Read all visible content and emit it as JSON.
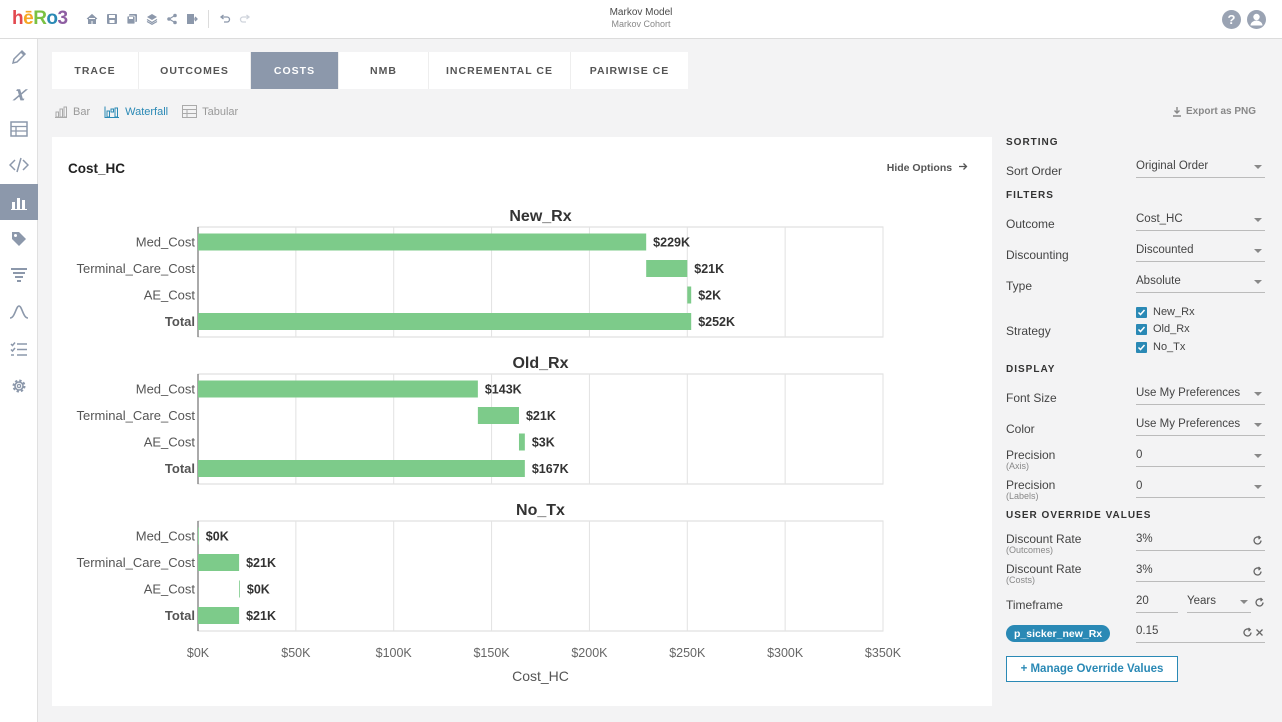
{
  "app": {
    "logo": [
      {
        "ch": "h",
        "color": "#e2484f"
      },
      {
        "ch": "ē",
        "color": "#f5a623"
      },
      {
        "ch": "R",
        "color": "#7ac142"
      },
      {
        "ch": "o",
        "color": "#2a89b5"
      },
      {
        "ch": "3",
        "color": "#8e5ea2"
      }
    ],
    "title": "Markov Model",
    "subtitle": "Markov Cohort"
  },
  "tabs": [
    {
      "label": "TRACE",
      "active": false
    },
    {
      "label": "OUTCOMES",
      "active": false
    },
    {
      "label": "COSTS",
      "active": true
    },
    {
      "label": "NMB",
      "active": false
    },
    {
      "label": "INCREMENTAL CE",
      "active": false
    },
    {
      "label": "PAIRWISE CE",
      "active": false
    }
  ],
  "view_modes": [
    {
      "label": "Bar",
      "icon": "bar-chart-icon",
      "active": false
    },
    {
      "label": "Waterfall",
      "icon": "waterfall-chart-icon",
      "active": true
    },
    {
      "label": "Tabular",
      "icon": "table-icon",
      "active": false
    }
  ],
  "export_label": "Export as PNG",
  "chart_card": {
    "title": "Cost_HC",
    "hide_options": "Hide Options"
  },
  "chart_data": {
    "type": "waterfall",
    "xlabel": "Cost_HC",
    "xlim": [
      0,
      350000
    ],
    "xticks": [
      0,
      50000,
      100000,
      150000,
      200000,
      250000,
      300000,
      350000
    ],
    "xtick_labels": [
      "$0K",
      "$50K",
      "$100K",
      "$150K",
      "$200K",
      "$250K",
      "$300K",
      "$350K"
    ],
    "grid": true,
    "bar_color": "#7dcb8a",
    "panels": [
      {
        "name": "New_Rx",
        "bars": [
          {
            "label": "Med_Cost",
            "start": 0,
            "value": 229000,
            "text": "$229K",
            "total": false
          },
          {
            "label": "Terminal_Care_Cost",
            "start": 229000,
            "value": 21000,
            "text": "$21K",
            "total": false
          },
          {
            "label": "AE_Cost",
            "start": 250000,
            "value": 2000,
            "text": "$2K",
            "total": false
          },
          {
            "label": "Total",
            "start": 0,
            "value": 252000,
            "text": "$252K",
            "total": true
          }
        ]
      },
      {
        "name": "Old_Rx",
        "bars": [
          {
            "label": "Med_Cost",
            "start": 0,
            "value": 143000,
            "text": "$143K",
            "total": false
          },
          {
            "label": "Terminal_Care_Cost",
            "start": 143000,
            "value": 21000,
            "text": "$21K",
            "total": false
          },
          {
            "label": "AE_Cost",
            "start": 164000,
            "value": 3000,
            "text": "$3K",
            "total": false
          },
          {
            "label": "Total",
            "start": 0,
            "value": 167000,
            "text": "$167K",
            "total": true
          }
        ]
      },
      {
        "name": "No_Tx",
        "bars": [
          {
            "label": "Med_Cost",
            "start": 0,
            "value": 0,
            "text": "$0K",
            "total": false
          },
          {
            "label": "Terminal_Care_Cost",
            "start": 0,
            "value": 21000,
            "text": "$21K",
            "total": false
          },
          {
            "label": "AE_Cost",
            "start": 21000,
            "value": 0,
            "text": "$0K",
            "total": false
          },
          {
            "label": "Total",
            "start": 0,
            "value": 21000,
            "text": "$21K",
            "total": true
          }
        ]
      }
    ]
  },
  "options": {
    "sorting_header": "SORTING",
    "sort_order": {
      "label": "Sort Order",
      "value": "Original Order"
    },
    "filters_header": "FILTERS",
    "outcome": {
      "label": "Outcome",
      "value": "Cost_HC"
    },
    "discounting": {
      "label": "Discounting",
      "value": "Discounted"
    },
    "type": {
      "label": "Type",
      "value": "Absolute"
    },
    "strategy": {
      "label": "Strategy",
      "items": [
        "New_Rx",
        "Old_Rx",
        "No_Tx"
      ]
    },
    "display_header": "DISPLAY",
    "font_size": {
      "label": "Font Size",
      "value": "Use My Preferences"
    },
    "color": {
      "label": "Color",
      "value": "Use My Preferences"
    },
    "precision_axis": {
      "label": "Precision",
      "sub": "(Axis)",
      "value": "0"
    },
    "precision_labels": {
      "label": "Precision",
      "sub": "(Labels)",
      "value": "0"
    },
    "override_header": "USER OVERRIDE VALUES",
    "discount_outcomes": {
      "label": "Discount Rate",
      "sub": "(Outcomes)",
      "value": "3%"
    },
    "discount_costs": {
      "label": "Discount Rate",
      "sub": "(Costs)",
      "value": "3%"
    },
    "timeframe": {
      "label": "Timeframe",
      "value": "20",
      "unit": "Years"
    },
    "param": {
      "name": "p_sicker_new_Rx",
      "value": "0.15"
    },
    "manage_button": "+ Manage Override Values"
  }
}
